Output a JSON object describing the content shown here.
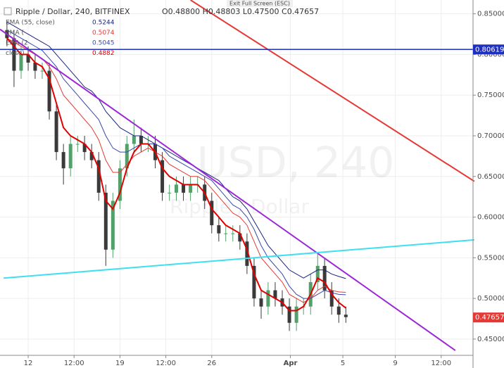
{
  "chart_data": {
    "type": "candlestick",
    "title": "Ripple / Dollar, 240, BITFINEX",
    "ohlc_text": "O0.48800 H0.48803 L0.47500 C0.47657",
    "tooltip": "Exit Full Screen (ESC)",
    "watermark": "USD, 240",
    "watermark_sub": "Ripple / Dollar",
    "x": [
      -1.62,
      -1.08,
      -0.54,
      0.0,
      0.53,
      1.07,
      1.61,
      2.15,
      2.69,
      3.23,
      3.77,
      4.3,
      4.84,
      5.38,
      5.92,
      6.46,
      7.0,
      7.53,
      8.07,
      8.61,
      9.15,
      9.69,
      10.23,
      10.77,
      11.3,
      11.84,
      12.38,
      12.92,
      13.46,
      14.0,
      14.54,
      15.07,
      15.61,
      16.15,
      16.69,
      17.23,
      17.77,
      18.3,
      18.84,
      19.38,
      19.92,
      20.46,
      21.0,
      21.54,
      22.08,
      22.61,
      23.15,
      23.69,
      24.23
    ],
    "open": [
      0.83,
      0.82,
      0.78,
      0.8,
      0.79,
      0.78,
      0.78,
      0.73,
      0.68,
      0.66,
      0.69,
      0.69,
      0.68,
      0.67,
      0.63,
      0.56,
      0.62,
      0.66,
      0.69,
      0.7,
      0.69,
      0.69,
      0.67,
      0.63,
      0.63,
      0.64,
      0.63,
      0.64,
      0.64,
      0.62,
      0.59,
      0.58,
      0.58,
      0.58,
      0.57,
      0.54,
      0.5,
      0.49,
      0.51,
      0.5,
      0.49,
      0.47,
      0.49,
      0.49,
      0.52,
      0.54,
      0.51,
      0.49,
      0.48
    ],
    "high": [
      0.84,
      0.83,
      0.81,
      0.81,
      0.8,
      0.79,
      0.79,
      0.74,
      0.69,
      0.7,
      0.7,
      0.7,
      0.69,
      0.68,
      0.64,
      0.63,
      0.67,
      0.7,
      0.72,
      0.71,
      0.7,
      0.7,
      0.68,
      0.64,
      0.65,
      0.65,
      0.65,
      0.65,
      0.65,
      0.63,
      0.6,
      0.59,
      0.59,
      0.59,
      0.58,
      0.55,
      0.51,
      0.52,
      0.52,
      0.51,
      0.5,
      0.5,
      0.5,
      0.53,
      0.555,
      0.55,
      0.52,
      0.5,
      0.49
    ],
    "low": [
      0.81,
      0.76,
      0.77,
      0.78,
      0.77,
      0.77,
      0.72,
      0.67,
      0.64,
      0.65,
      0.68,
      0.67,
      0.66,
      0.62,
      0.54,
      0.55,
      0.61,
      0.65,
      0.68,
      0.68,
      0.68,
      0.66,
      0.62,
      0.62,
      0.62,
      0.62,
      0.62,
      0.63,
      0.61,
      0.58,
      0.57,
      0.57,
      0.57,
      0.56,
      0.53,
      0.49,
      0.475,
      0.48,
      0.49,
      0.48,
      0.46,
      0.46,
      0.48,
      0.48,
      0.51,
      0.5,
      0.48,
      0.47,
      0.47
    ],
    "close": [
      0.82,
      0.78,
      0.8,
      0.79,
      0.78,
      0.78,
      0.73,
      0.68,
      0.66,
      0.69,
      0.69,
      0.68,
      0.67,
      0.63,
      0.56,
      0.62,
      0.66,
      0.69,
      0.7,
      0.69,
      0.69,
      0.67,
      0.63,
      0.63,
      0.64,
      0.63,
      0.64,
      0.64,
      0.62,
      0.59,
      0.58,
      0.58,
      0.58,
      0.57,
      0.54,
      0.5,
      0.49,
      0.51,
      0.5,
      0.49,
      0.47,
      0.49,
      0.49,
      0.52,
      0.54,
      0.51,
      0.49,
      0.48,
      0.477
    ],
    "up_color": "#53a06a",
    "down_color": "#3a3a3a",
    "series": [
      {
        "name": "EMA (55, close)",
        "legend_value": 0.5244,
        "color": "#1a237e",
        "width": 1,
        "values": [
          0.84,
          0.835,
          0.83,
          0.825,
          0.82,
          0.815,
          0.81,
          0.8,
          0.79,
          0.78,
          0.77,
          0.76,
          0.755,
          0.745,
          0.73,
          0.72,
          0.71,
          0.705,
          0.7,
          0.7,
          0.695,
          0.69,
          0.685,
          0.68,
          0.675,
          0.67,
          0.665,
          0.66,
          0.655,
          0.65,
          0.645,
          0.635,
          0.625,
          0.62,
          0.61,
          0.595,
          0.58,
          0.565,
          0.555,
          0.545,
          0.535,
          0.53,
          0.525,
          0.53,
          0.535,
          0.535,
          0.53,
          0.527,
          0.5244
        ]
      },
      {
        "name": "EMA (",
        "legend_value": 0.5074,
        "color": "#e53935",
        "width": 1,
        "values": [
          0.82,
          0.815,
          0.81,
          0.805,
          0.8,
          0.795,
          0.785,
          0.77,
          0.75,
          0.74,
          0.73,
          0.72,
          0.71,
          0.695,
          0.67,
          0.655,
          0.655,
          0.665,
          0.675,
          0.68,
          0.685,
          0.68,
          0.675,
          0.665,
          0.66,
          0.655,
          0.65,
          0.65,
          0.645,
          0.635,
          0.625,
          0.615,
          0.605,
          0.6,
          0.59,
          0.57,
          0.55,
          0.54,
          0.53,
          0.52,
          0.505,
          0.5,
          0.495,
          0.5,
          0.51,
          0.515,
          0.51,
          0.508,
          0.5074
        ]
      },
      {
        "name": "EMA (2",
        "legend_value": 0.5045,
        "color": "#3949ab",
        "width": 1,
        "values": [
          0.83,
          0.825,
          0.82,
          0.815,
          0.81,
          0.805,
          0.795,
          0.785,
          0.77,
          0.76,
          0.75,
          0.74,
          0.73,
          0.72,
          0.7,
          0.685,
          0.68,
          0.68,
          0.685,
          0.69,
          0.69,
          0.69,
          0.685,
          0.675,
          0.67,
          0.665,
          0.66,
          0.655,
          0.65,
          0.645,
          0.635,
          0.625,
          0.615,
          0.61,
          0.6,
          0.585,
          0.565,
          0.55,
          0.54,
          0.53,
          0.515,
          0.505,
          0.5,
          0.5,
          0.505,
          0.51,
          0.507,
          0.505,
          0.5045
        ]
      },
      {
        "name": "close)",
        "legend_value": 0.4882,
        "color": "#e00000",
        "width": 2,
        "values": [
          0.82,
          0.81,
          0.8,
          0.8,
          0.79,
          0.785,
          0.77,
          0.74,
          0.71,
          0.7,
          0.695,
          0.69,
          0.68,
          0.66,
          0.62,
          0.61,
          0.63,
          0.66,
          0.68,
          0.69,
          0.69,
          0.68,
          0.66,
          0.65,
          0.645,
          0.64,
          0.64,
          0.64,
          0.63,
          0.61,
          0.6,
          0.59,
          0.585,
          0.58,
          0.56,
          0.53,
          0.51,
          0.505,
          0.5,
          0.495,
          0.485,
          0.485,
          0.49,
          0.505,
          0.525,
          0.52,
          0.505,
          0.495,
          0.4882
        ]
      }
    ],
    "trend_lines": [
      {
        "color": "#9c27d6",
        "x": [
          -2.15,
          32.58
        ],
        "values": [
          0.831,
          0.436
        ]
      },
      {
        "color": "#e53935",
        "x": [
          12.38,
          34.03
        ],
        "values": [
          0.867,
          0.644
        ]
      },
      {
        "color": "#3ee0f0",
        "x": [
          -1.88,
          34.03
        ],
        "values": [
          0.525,
          0.572
        ]
      }
    ],
    "hline": {
      "value": 0.80619,
      "color": "#1f2fbf"
    },
    "last_price": 0.47657,
    "last_color": "#e53935",
    "xlim": [
      -2.15,
      33.93
    ],
    "ylim": [
      0.43,
      0.867
    ],
    "xticks": [
      {
        "value": 0,
        "label": "12"
      },
      {
        "value": 3.5,
        "label": "12:00"
      },
      {
        "value": 7,
        "label": "19"
      },
      {
        "value": 10.5,
        "label": "12:00"
      },
      {
        "value": 14,
        "label": "26"
      },
      {
        "value": 20,
        "label": "Apr"
      },
      {
        "value": 24,
        "label": "5"
      },
      {
        "value": 28,
        "label": "9"
      },
      {
        "value": 31.5,
        "label": "12:00"
      }
    ],
    "yticks": [
      {
        "value": 0.85,
        "label": "0.85000"
      },
      {
        "value": 0.8,
        "label": "0.80000"
      },
      {
        "value": 0.75,
        "label": "0.75000"
      },
      {
        "value": 0.7,
        "label": "0.70000"
      },
      {
        "value": 0.65,
        "label": "0.65000"
      },
      {
        "value": 0.6,
        "label": "0.60000"
      },
      {
        "value": 0.55,
        "label": "0.55000"
      },
      {
        "value": 0.5,
        "label": "0.50000"
      },
      {
        "value": 0.45,
        "label": "0.45000"
      }
    ]
  }
}
